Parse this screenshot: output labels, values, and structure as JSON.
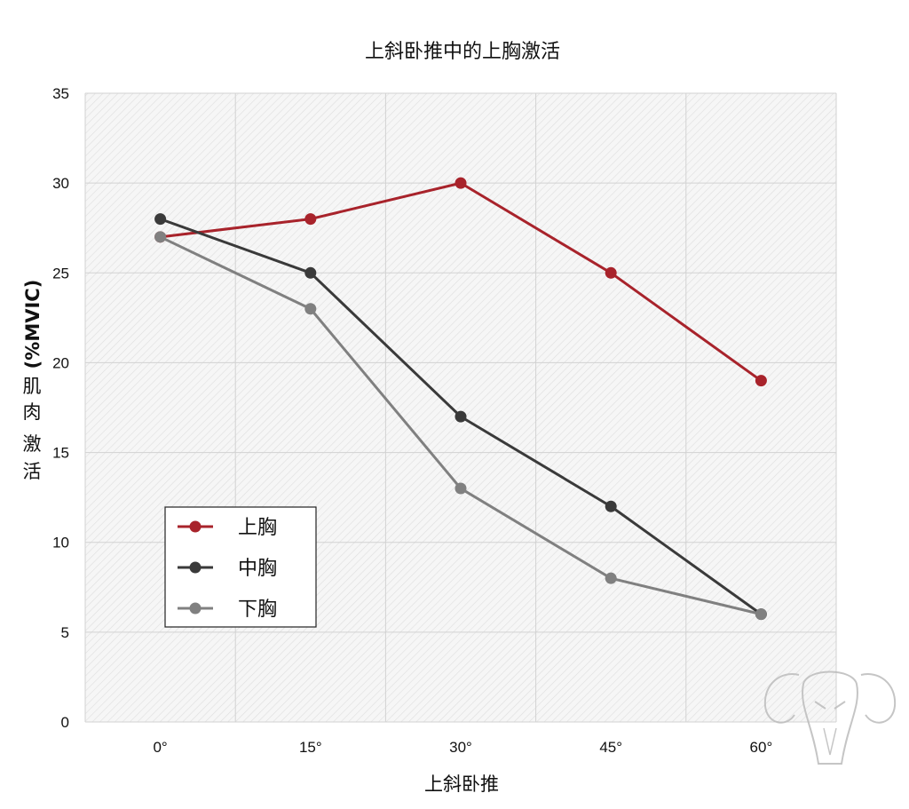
{
  "chart_data": {
    "type": "line",
    "title": "上斜卧推中的上胸激活",
    "xlabel": "上斜卧推",
    "ylabel_prefix": "(%MVIC)",
    "ylabel_chars": [
      "肌",
      "肉",
      "激",
      "活"
    ],
    "categories": [
      "0°",
      "15°",
      "30°",
      "45°",
      "60°"
    ],
    "ylim": [
      0,
      35
    ],
    "yticks": [
      0,
      5,
      10,
      15,
      20,
      25,
      30,
      35
    ],
    "grid": true,
    "legend_position": "bottom-left",
    "series": [
      {
        "name": "上胸",
        "color": "#a8232b",
        "values": [
          27,
          28,
          30,
          25,
          19
        ]
      },
      {
        "name": "中胸",
        "color": "#3a3a3a",
        "values": [
          28,
          25,
          17,
          12,
          6
        ]
      },
      {
        "name": "下胸",
        "color": "#808080",
        "values": [
          27,
          23,
          13,
          8,
          6
        ]
      }
    ]
  }
}
